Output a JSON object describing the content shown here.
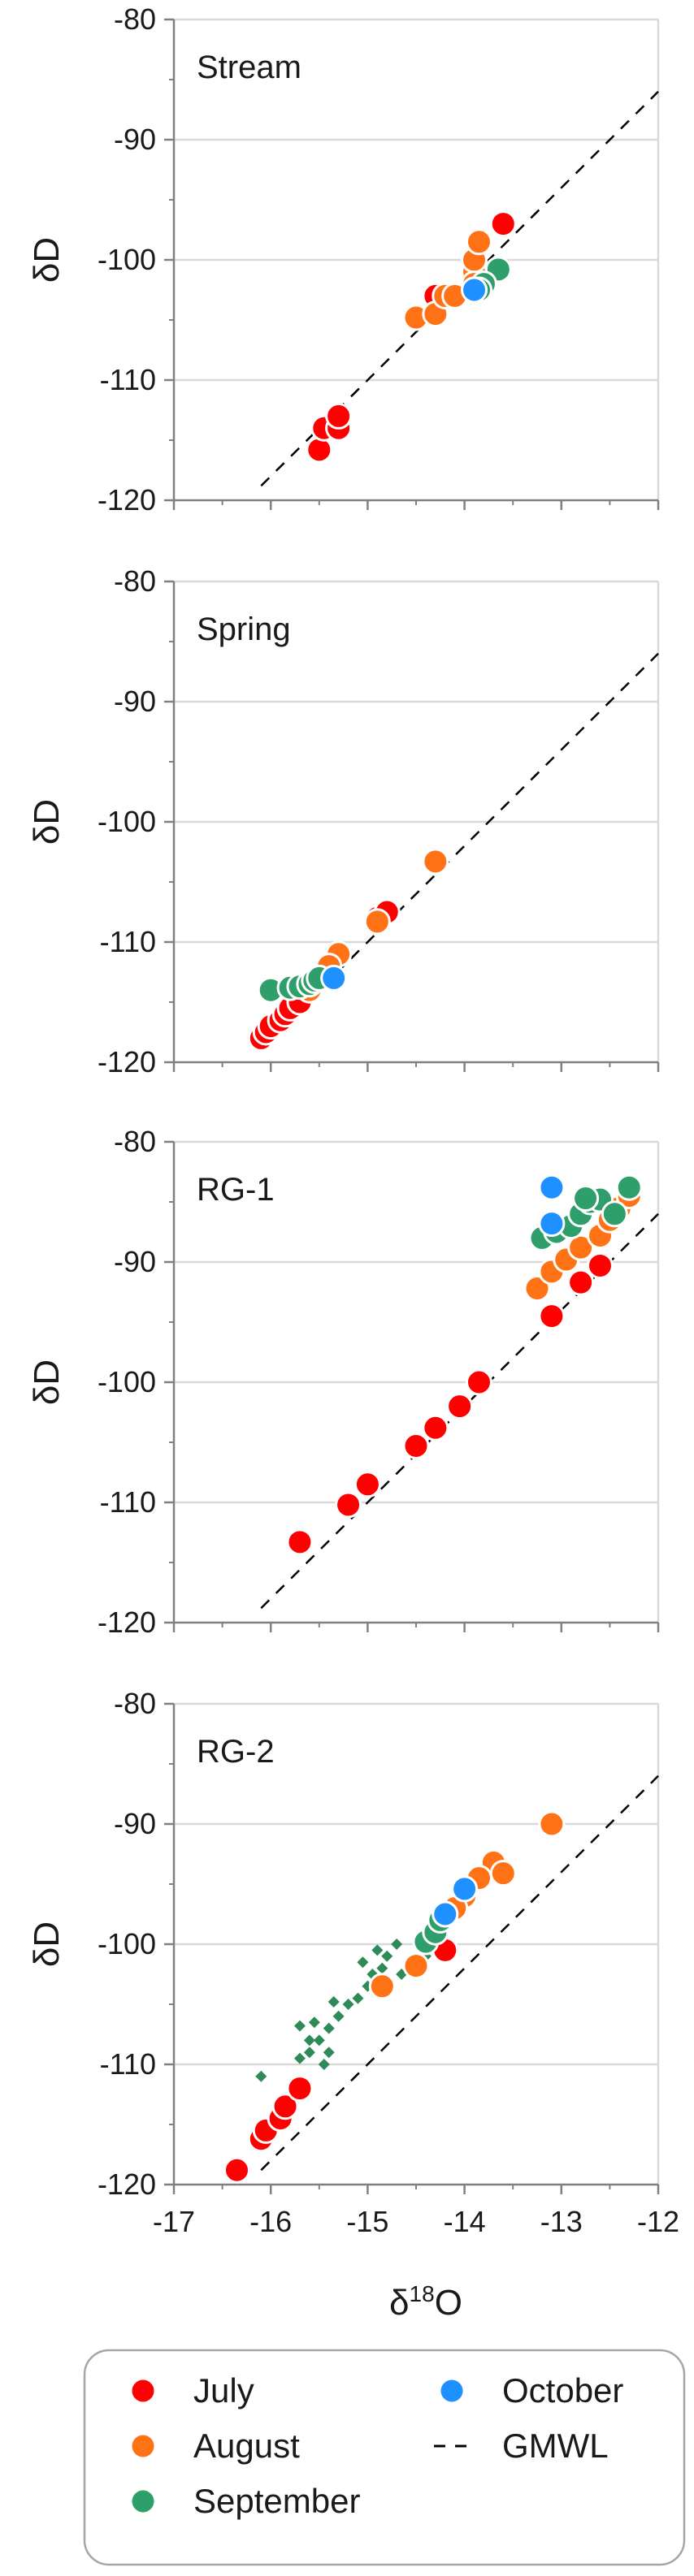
{
  "chart_data": {
    "type": "scatter",
    "x_axis": {
      "label_main": "δ",
      "label_sup": "18",
      "label_end": "O",
      "range": [
        -17,
        -12
      ],
      "ticks": [
        -17,
        -16,
        -15,
        -14,
        -13,
        -12
      ],
      "tick_labels": [
        "-17",
        "-16",
        "-15",
        "-14",
        "-13",
        "-12"
      ]
    },
    "y_axis": {
      "label": "δD",
      "range": [
        -120,
        -80
      ],
      "ticks": [
        -120,
        -110,
        -100,
        -90,
        -80
      ],
      "tick_labels": [
        "-120",
        "-110",
        "-100",
        "-90",
        "-80"
      ]
    },
    "legend": {
      "placement": "bottom",
      "entries": [
        {
          "key": "july",
          "label": "July",
          "marker": "circle",
          "color": "#ff0000"
        },
        {
          "key": "october",
          "label": "October",
          "marker": "circle",
          "color": "#1e90ff"
        },
        {
          "key": "august",
          "label": "August",
          "marker": "circle",
          "color": "#ff7316"
        },
        {
          "key": "gmwl",
          "label": "GMWL",
          "marker": "dashed-line",
          "color": "#000000"
        },
        {
          "key": "september",
          "label": "September",
          "marker": "circle",
          "color": "#2e9e6b"
        }
      ]
    },
    "gmwl": {
      "slope": 8,
      "intercept": 10,
      "x_range": [
        -16.1,
        -12
      ]
    },
    "colors": {
      "july": "#ff0000",
      "august": "#ff7316",
      "september": "#2e9e6b",
      "october": "#1e90ff",
      "diamond": "#2e8b57",
      "gridline": "#d9d9d9",
      "axis": "#808080"
    },
    "panels": [
      {
        "name": "Stream",
        "series": {
          "july": [
            [
              -15.5,
              -115.8
            ],
            [
              -15.45,
              -114
            ],
            [
              -15.3,
              -114
            ],
            [
              -15.3,
              -113
            ],
            [
              -14.3,
              -103
            ],
            [
              -13.6,
              -97
            ]
          ],
          "august": [
            [
              -14.5,
              -104.8
            ],
            [
              -14.3,
              -104.5
            ],
            [
              -14.2,
              -103
            ],
            [
              -14.1,
              -103
            ],
            [
              -13.9,
              -101
            ],
            [
              -13.9,
              -100
            ],
            [
              -13.85,
              -98.5
            ],
            [
              -13.9,
              -102
            ]
          ],
          "september": [
            [
              -13.65,
              -100.8
            ],
            [
              -13.8,
              -102
            ],
            [
              -13.85,
              -102.5
            ]
          ],
          "october": [
            [
              -13.9,
              -102.5
            ]
          ]
        }
      },
      {
        "name": "Spring",
        "series": {
          "july": [
            [
              -16.1,
              -118
            ],
            [
              -16.05,
              -117.5
            ],
            [
              -16.0,
              -117
            ],
            [
              -15.9,
              -116.5
            ],
            [
              -15.85,
              -116
            ],
            [
              -15.8,
              -115.5
            ],
            [
              -15.7,
              -115
            ],
            [
              -14.9,
              -108
            ],
            [
              -14.8,
              -107.5
            ]
          ],
          "august": [
            [
              -14.3,
              -103.3
            ],
            [
              -15.3,
              -111
            ],
            [
              -15.4,
              -112
            ],
            [
              -15.5,
              -113
            ],
            [
              -15.55,
              -113.5
            ],
            [
              -14.9,
              -108.3
            ],
            [
              -15.6,
              -114
            ]
          ],
          "september": [
            [
              -16.0,
              -114
            ],
            [
              -15.8,
              -113.8
            ],
            [
              -15.7,
              -113.7
            ],
            [
              -15.6,
              -113.5
            ],
            [
              -15.55,
              -113.2
            ],
            [
              -15.5,
              -113
            ]
          ],
          "october": [
            [
              -15.35,
              -113
            ]
          ]
        }
      },
      {
        "name": "RG-1",
        "series": {
          "july": [
            [
              -15.7,
              -113.3
            ],
            [
              -15.2,
              -110.2
            ],
            [
              -15.0,
              -108.5
            ],
            [
              -14.5,
              -105.3
            ],
            [
              -14.3,
              -103.8
            ],
            [
              -14.05,
              -102
            ],
            [
              -13.85,
              -100
            ],
            [
              -13.1,
              -94.5
            ],
            [
              -12.8,
              -91.7
            ],
            [
              -12.6,
              -90.3
            ]
          ],
          "august": [
            [
              -13.25,
              -92.2
            ],
            [
              -13.1,
              -90.8
            ],
            [
              -12.95,
              -89.8
            ],
            [
              -12.8,
              -88.8
            ],
            [
              -12.6,
              -87.8
            ],
            [
              -12.5,
              -86.5
            ],
            [
              -12.4,
              -85.5
            ],
            [
              -12.3,
              -84.5
            ]
          ],
          "september": [
            [
              -13.2,
              -88
            ],
            [
              -13.05,
              -87.5
            ],
            [
              -12.9,
              -87
            ],
            [
              -12.8,
              -86
            ],
            [
              -12.7,
              -85
            ],
            [
              -12.6,
              -84.8
            ],
            [
              -12.45,
              -86
            ],
            [
              -12.3,
              -83.8
            ],
            [
              -12.75,
              -84.7
            ]
          ],
          "october": [
            [
              -13.1,
              -83.8
            ],
            [
              -13.1,
              -86.8
            ]
          ]
        }
      },
      {
        "name": "RG-2",
        "series": {
          "july": [
            [
              -16.35,
              -118.8
            ],
            [
              -16.1,
              -116.2
            ],
            [
              -16.05,
              -115.5
            ],
            [
              -15.9,
              -114.5
            ],
            [
              -15.85,
              -113.5
            ],
            [
              -15.7,
              -112
            ],
            [
              -14.2,
              -100.5
            ]
          ],
          "august": [
            [
              -13.1,
              -90
            ],
            [
              -13.7,
              -93.2
            ],
            [
              -13.6,
              -94.1
            ],
            [
              -13.85,
              -94.5
            ],
            [
              -14.0,
              -96
            ],
            [
              -14.5,
              -101.8
            ],
            [
              -14.85,
              -103.5
            ],
            [
              -14.1,
              -97
            ]
          ],
          "september": [
            [
              -14.4,
              -99.8
            ],
            [
              -14.3,
              -99
            ],
            [
              -14.25,
              -98
            ],
            [
              -14.2,
              -97.5
            ]
          ],
          "october": [
            [
              -14.0,
              -95.4
            ],
            [
              -14.2,
              -97.5
            ]
          ],
          "diamonds": [
            [
              -16.1,
              -111
            ],
            [
              -15.7,
              -109.5
            ],
            [
              -15.6,
              -109
            ],
            [
              -15.5,
              -108
            ],
            [
              -15.55,
              -106.5
            ],
            [
              -15.4,
              -107
            ],
            [
              -15.4,
              -109
            ],
            [
              -15.45,
              -110
            ],
            [
              -15.3,
              -106
            ],
            [
              -15.2,
              -105
            ],
            [
              -15.1,
              -104.5
            ],
            [
              -15.0,
              -103.5
            ],
            [
              -14.95,
              -102.5
            ],
            [
              -14.85,
              -102
            ],
            [
              -14.8,
              -101
            ],
            [
              -14.7,
              -100
            ],
            [
              -14.65,
              -102.5
            ],
            [
              -14.5,
              -101.5
            ],
            [
              -14.4,
              -101
            ],
            [
              -15.6,
              -108
            ],
            [
              -15.7,
              -106.8
            ],
            [
              -15.35,
              -104.8
            ],
            [
              -15.05,
              -101.5
            ],
            [
              -14.9,
              -100.5
            ]
          ]
        }
      }
    ]
  }
}
